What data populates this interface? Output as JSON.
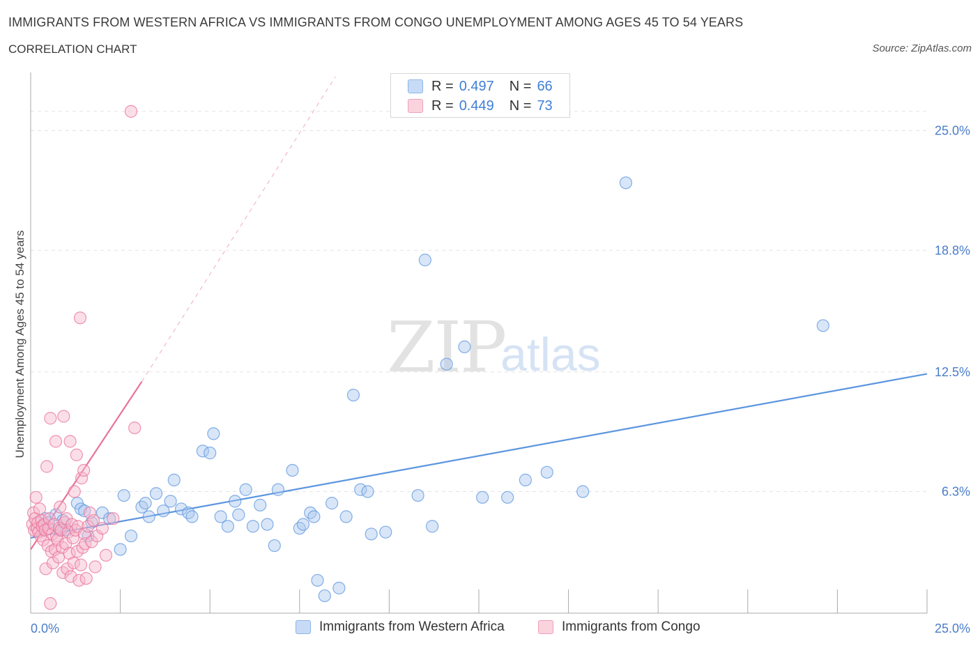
{
  "header": {
    "title": "IMMIGRANTS FROM WESTERN AFRICA VS IMMIGRANTS FROM CONGO UNEMPLOYMENT AMONG AGES 45 TO 54 YEARS",
    "subtitle": "CORRELATION CHART",
    "source": "Source: ZipAtlas.com"
  },
  "watermark": {
    "part1": "ZIP",
    "part2": "atlas"
  },
  "legend": {
    "rows": [
      {
        "r_label": "R =",
        "r_value": "0.497",
        "n_label": "N =",
        "n_value": "66",
        "color": "#aac8f0"
      },
      {
        "r_label": "R =",
        "r_value": "0.449",
        "n_label": "N =",
        "n_value": "73",
        "color": "#f6b8cb"
      }
    ]
  },
  "bottom_legend": {
    "items": [
      {
        "label": "Immigrants from Western Africa",
        "color": "#aac8f0"
      },
      {
        "label": "Immigrants from Congo",
        "color": "#f6b8cb"
      }
    ]
  },
  "chart_data": {
    "type": "scatter",
    "title": "IMMIGRANTS FROM WESTERN AFRICA VS IMMIGRANTS FROM CONGO UNEMPLOYMENT AMONG AGES 45 TO 54 YEARS",
    "xlabel": "",
    "ylabel": "Unemployment Among Ages 45 to 54 years",
    "xlim": [
      0,
      25
    ],
    "ylim": [
      0,
      27.8
    ],
    "x_tick_labels": [
      "0.0%",
      "25.0%"
    ],
    "y_ticks": [
      6.3,
      12.5,
      18.8,
      25.0
    ],
    "y_tick_labels": [
      "6.3%",
      "12.5%",
      "18.8%",
      "25.0%"
    ],
    "grid": true,
    "series": [
      {
        "name": "Immigrants from Western Africa",
        "color": "#5b95df",
        "fill": "#aac8f0",
        "r": 0.497,
        "n": 66,
        "trend": {
          "x": [
            0,
            25
          ],
          "y": [
            3.9,
            12.4
          ]
        },
        "points": [
          [
            0.4,
            4.9
          ],
          [
            0.5,
            4.7
          ],
          [
            0.7,
            5.1
          ],
          [
            0.8,
            4.3
          ],
          [
            0.9,
            4.8
          ],
          [
            1.0,
            4.3
          ],
          [
            1.3,
            5.7
          ],
          [
            1.4,
            5.4
          ],
          [
            1.5,
            5.3
          ],
          [
            1.7,
            4.7
          ],
          [
            1.6,
            4.0
          ],
          [
            2.0,
            5.2
          ],
          [
            2.2,
            4.9
          ],
          [
            2.5,
            3.3
          ],
          [
            2.6,
            6.1
          ],
          [
            2.8,
            4.0
          ],
          [
            3.1,
            5.5
          ],
          [
            3.2,
            5.7
          ],
          [
            3.3,
            5.0
          ],
          [
            3.5,
            6.2
          ],
          [
            3.7,
            5.3
          ],
          [
            3.9,
            5.8
          ],
          [
            4.0,
            6.9
          ],
          [
            4.2,
            5.4
          ],
          [
            4.4,
            5.2
          ],
          [
            4.5,
            5.0
          ],
          [
            4.8,
            8.4
          ],
          [
            5.0,
            8.3
          ],
          [
            5.1,
            9.3
          ],
          [
            5.3,
            5.0
          ],
          [
            5.5,
            4.5
          ],
          [
            5.7,
            5.8
          ],
          [
            5.8,
            5.1
          ],
          [
            6.0,
            6.4
          ],
          [
            6.2,
            4.5
          ],
          [
            6.4,
            5.6
          ],
          [
            6.6,
            4.6
          ],
          [
            6.8,
            3.5
          ],
          [
            6.9,
            6.4
          ],
          [
            7.3,
            7.4
          ],
          [
            7.5,
            4.4
          ],
          [
            7.6,
            4.6
          ],
          [
            7.8,
            5.2
          ],
          [
            7.9,
            5.0
          ],
          [
            8.0,
            1.7
          ],
          [
            8.2,
            0.9
          ],
          [
            8.4,
            5.7
          ],
          [
            8.6,
            1.3
          ],
          [
            8.8,
            5.0
          ],
          [
            9.0,
            11.3
          ],
          [
            9.2,
            6.4
          ],
          [
            9.4,
            6.3
          ],
          [
            9.5,
            4.1
          ],
          [
            9.9,
            4.2
          ],
          [
            10.8,
            6.1
          ],
          [
            11.0,
            18.3
          ],
          [
            11.2,
            4.5
          ],
          [
            11.6,
            12.9
          ],
          [
            12.1,
            13.8
          ],
          [
            12.6,
            6.0
          ],
          [
            13.3,
            6.0
          ],
          [
            13.8,
            6.9
          ],
          [
            14.4,
            7.3
          ],
          [
            15.4,
            6.3
          ],
          [
            16.6,
            22.3
          ],
          [
            22.1,
            14.9
          ]
        ]
      },
      {
        "name": "Immigrants from Congo",
        "color": "#e8729a",
        "fill": "#f6b8cb",
        "r": 0.449,
        "n": 73,
        "trend": {
          "x": [
            0,
            3.1
          ],
          "y": [
            3.3,
            12.0
          ],
          "extended": {
            "x": [
              3.1,
              8.5
            ],
            "y": [
              12.0,
              27.8
            ]
          }
        },
        "points": [
          [
            0.05,
            4.6
          ],
          [
            0.08,
            5.2
          ],
          [
            0.1,
            4.3
          ],
          [
            0.12,
            4.9
          ],
          [
            0.15,
            6.0
          ],
          [
            0.18,
            4.4
          ],
          [
            0.2,
            4.7
          ],
          [
            0.22,
            4.2
          ],
          [
            0.25,
            5.4
          ],
          [
            0.28,
            4.0
          ],
          [
            0.3,
            4.8
          ],
          [
            0.32,
            4.5
          ],
          [
            0.35,
            3.8
          ],
          [
            0.38,
            4.6
          ],
          [
            0.4,
            4.3
          ],
          [
            0.42,
            2.3
          ],
          [
            0.45,
            7.6
          ],
          [
            0.48,
            3.5
          ],
          [
            0.5,
            4.4
          ],
          [
            0.52,
            4.9
          ],
          [
            0.55,
            10.1
          ],
          [
            0.58,
            3.2
          ],
          [
            0.6,
            4.1
          ],
          [
            0.62,
            2.6
          ],
          [
            0.65,
            4.6
          ],
          [
            0.68,
            3.3
          ],
          [
            0.7,
            8.9
          ],
          [
            0.72,
            4.0
          ],
          [
            0.75,
            3.8
          ],
          [
            0.78,
            2.9
          ],
          [
            0.8,
            4.4
          ],
          [
            0.82,
            5.5
          ],
          [
            0.85,
            4.3
          ],
          [
            0.88,
            3.4
          ],
          [
            0.9,
            2.1
          ],
          [
            0.92,
            10.2
          ],
          [
            0.95,
            4.7
          ],
          [
            0.98,
            3.6
          ],
          [
            1.0,
            4.9
          ],
          [
            1.02,
            2.3
          ],
          [
            1.05,
            4.2
          ],
          [
            1.08,
            3.1
          ],
          [
            1.1,
            8.9
          ],
          [
            1.12,
            1.9
          ],
          [
            1.15,
            4.6
          ],
          [
            1.18,
            3.9
          ],
          [
            1.2,
            2.6
          ],
          [
            1.22,
            6.3
          ],
          [
            1.25,
            4.3
          ],
          [
            1.28,
            8.2
          ],
          [
            1.3,
            3.2
          ],
          [
            1.32,
            4.5
          ],
          [
            1.35,
            1.7
          ],
          [
            1.38,
            15.3
          ],
          [
            1.4,
            2.5
          ],
          [
            1.42,
            7.0
          ],
          [
            1.45,
            3.4
          ],
          [
            1.48,
            7.4
          ],
          [
            1.5,
            4.1
          ],
          [
            1.52,
            3.6
          ],
          [
            1.55,
            1.8
          ],
          [
            1.6,
            4.5
          ],
          [
            1.65,
            5.2
          ],
          [
            1.7,
            3.7
          ],
          [
            1.75,
            4.8
          ],
          [
            1.8,
            2.4
          ],
          [
            1.85,
            4.0
          ],
          [
            2.0,
            4.4
          ],
          [
            2.1,
            3.0
          ],
          [
            2.3,
            4.9
          ],
          [
            2.8,
            26.0
          ],
          [
            2.9,
            9.6
          ],
          [
            0.55,
            0.5
          ]
        ]
      }
    ]
  }
}
